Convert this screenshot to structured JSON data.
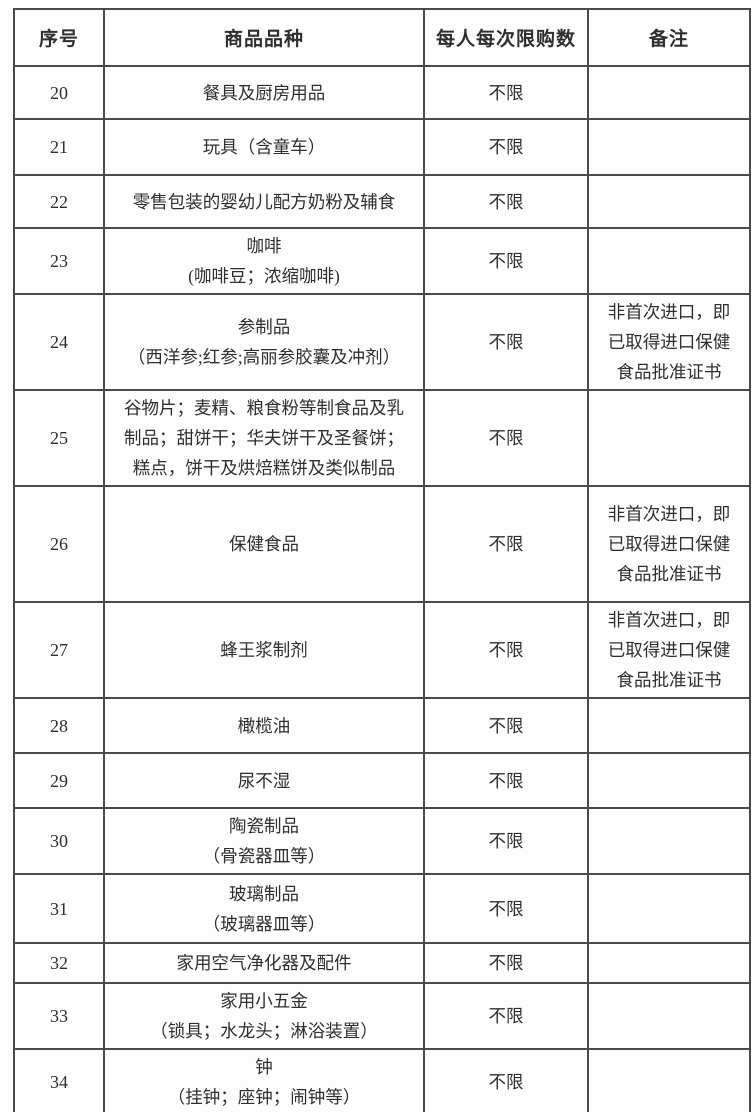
{
  "colors": {
    "border": "#4a4a4a",
    "text": "#2f2f2f",
    "background": "#fdfdfd"
  },
  "table": {
    "headers": [
      "序号",
      "商品品种",
      "每人每次限购数",
      "备注"
    ],
    "rows": [
      {
        "no": "20",
        "product": [
          "餐具及厨房用品"
        ],
        "limit": "不限",
        "remark": []
      },
      {
        "no": "21",
        "product": [
          "玩具（含童车）"
        ],
        "limit": "不限",
        "remark": []
      },
      {
        "no": "22",
        "product": [
          "零售包装的婴幼儿配方奶粉及辅食"
        ],
        "limit": "不限",
        "remark": []
      },
      {
        "no": "23",
        "product": [
          "咖啡",
          "(咖啡豆；浓缩咖啡)"
        ],
        "limit": "不限",
        "remark": []
      },
      {
        "no": "24",
        "product": [
          "参制品",
          "（西洋参;红参;高丽参胶囊及冲剂）"
        ],
        "limit": "不限",
        "remark": [
          "非首次进口，即",
          "已取得进口保健",
          "食品批准证书"
        ]
      },
      {
        "no": "25",
        "product": [
          "谷物片；麦精、粮食粉等制食品及乳",
          "制品；甜饼干；华夫饼干及圣餐饼；",
          "糕点，饼干及烘焙糕饼及类似制品"
        ],
        "limit": "不限",
        "remark": []
      },
      {
        "no": "26",
        "product": [
          "保健食品"
        ],
        "limit": "不限",
        "remark": [
          "非首次进口，即",
          "已取得进口保健",
          "食品批准证书"
        ]
      },
      {
        "no": "27",
        "product": [
          "蜂王浆制剂"
        ],
        "limit": "不限",
        "remark": [
          "非首次进口，即",
          "已取得进口保健",
          "食品批准证书"
        ]
      },
      {
        "no": "28",
        "product": [
          "橄榄油"
        ],
        "limit": "不限",
        "remark": []
      },
      {
        "no": "29",
        "product": [
          "尿不湿"
        ],
        "limit": "不限",
        "remark": []
      },
      {
        "no": "30",
        "product": [
          "陶瓷制品",
          "（骨瓷器皿等）"
        ],
        "limit": "不限",
        "remark": []
      },
      {
        "no": "31",
        "product": [
          "玻璃制品",
          "（玻璃器皿等）"
        ],
        "limit": "不限",
        "remark": []
      },
      {
        "no": "32",
        "product": [
          "家用空气净化器及配件"
        ],
        "limit": "不限",
        "remark": []
      },
      {
        "no": "33",
        "product": [
          "家用小五金",
          "（锁具；水龙头；淋浴装置）"
        ],
        "limit": "不限",
        "remark": []
      },
      {
        "no": "34",
        "product": [
          "钟",
          "（挂钟；座钟；闹钟等）"
        ],
        "limit": "不限",
        "remark": []
      }
    ]
  }
}
